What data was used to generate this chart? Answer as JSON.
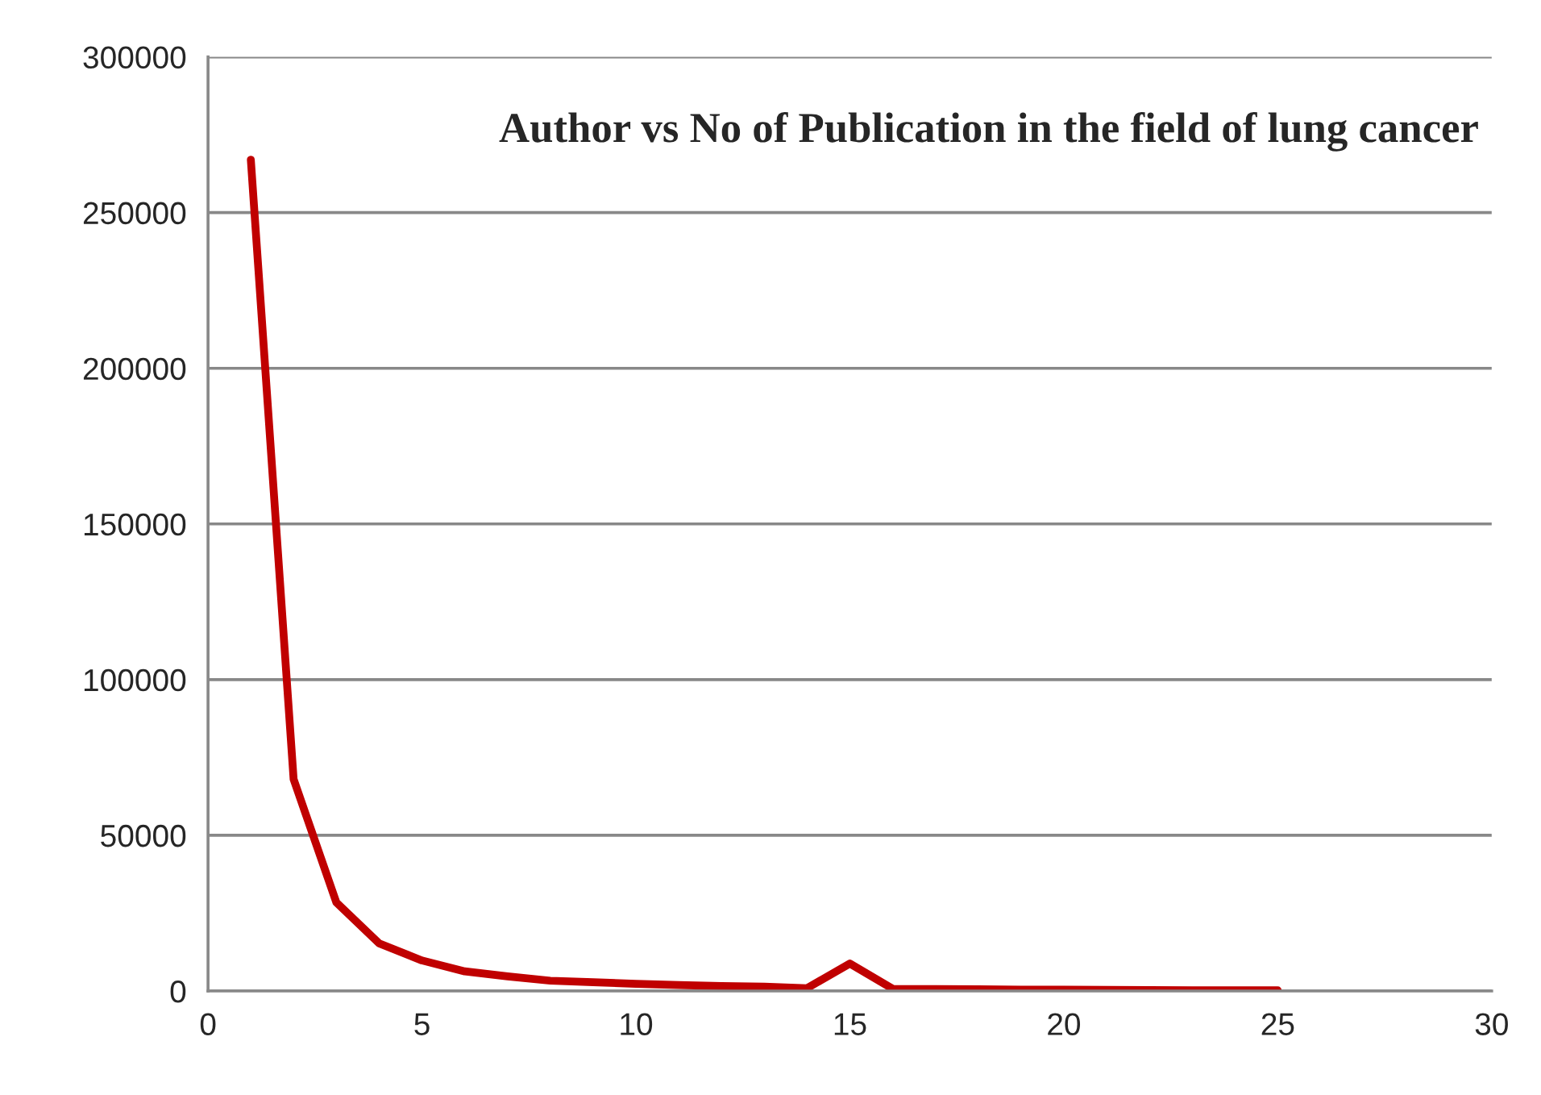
{
  "chart_data": {
    "type": "line",
    "title": "Author vs No of Publication in the field of lung cancer",
    "x": [
      1,
      2,
      3,
      4,
      5,
      6,
      7,
      8,
      9,
      10,
      11,
      12,
      13,
      14,
      15,
      16,
      17,
      18,
      19,
      20,
      21,
      22,
      23,
      24,
      25
    ],
    "series": [
      {
        "color": "#c00000",
        "values": [
          267000,
          68000,
          28400,
          15300,
          9800,
          6300,
          4700,
          3300,
          2800,
          2300,
          1900,
          1600,
          1400,
          900,
          8800,
          700,
          600,
          550,
          450,
          400,
          350,
          300,
          250,
          200,
          200
        ]
      }
    ],
    "xlim": [
      0,
      30
    ],
    "xticks": [
      0,
      5,
      10,
      15,
      20,
      25,
      30
    ],
    "ylim": [
      0,
      300000
    ],
    "yticks": [
      0,
      50000,
      100000,
      150000,
      200000,
      250000,
      300000
    ],
    "grid": "y",
    "legend": false,
    "marker": "none",
    "line_style": "solid"
  }
}
